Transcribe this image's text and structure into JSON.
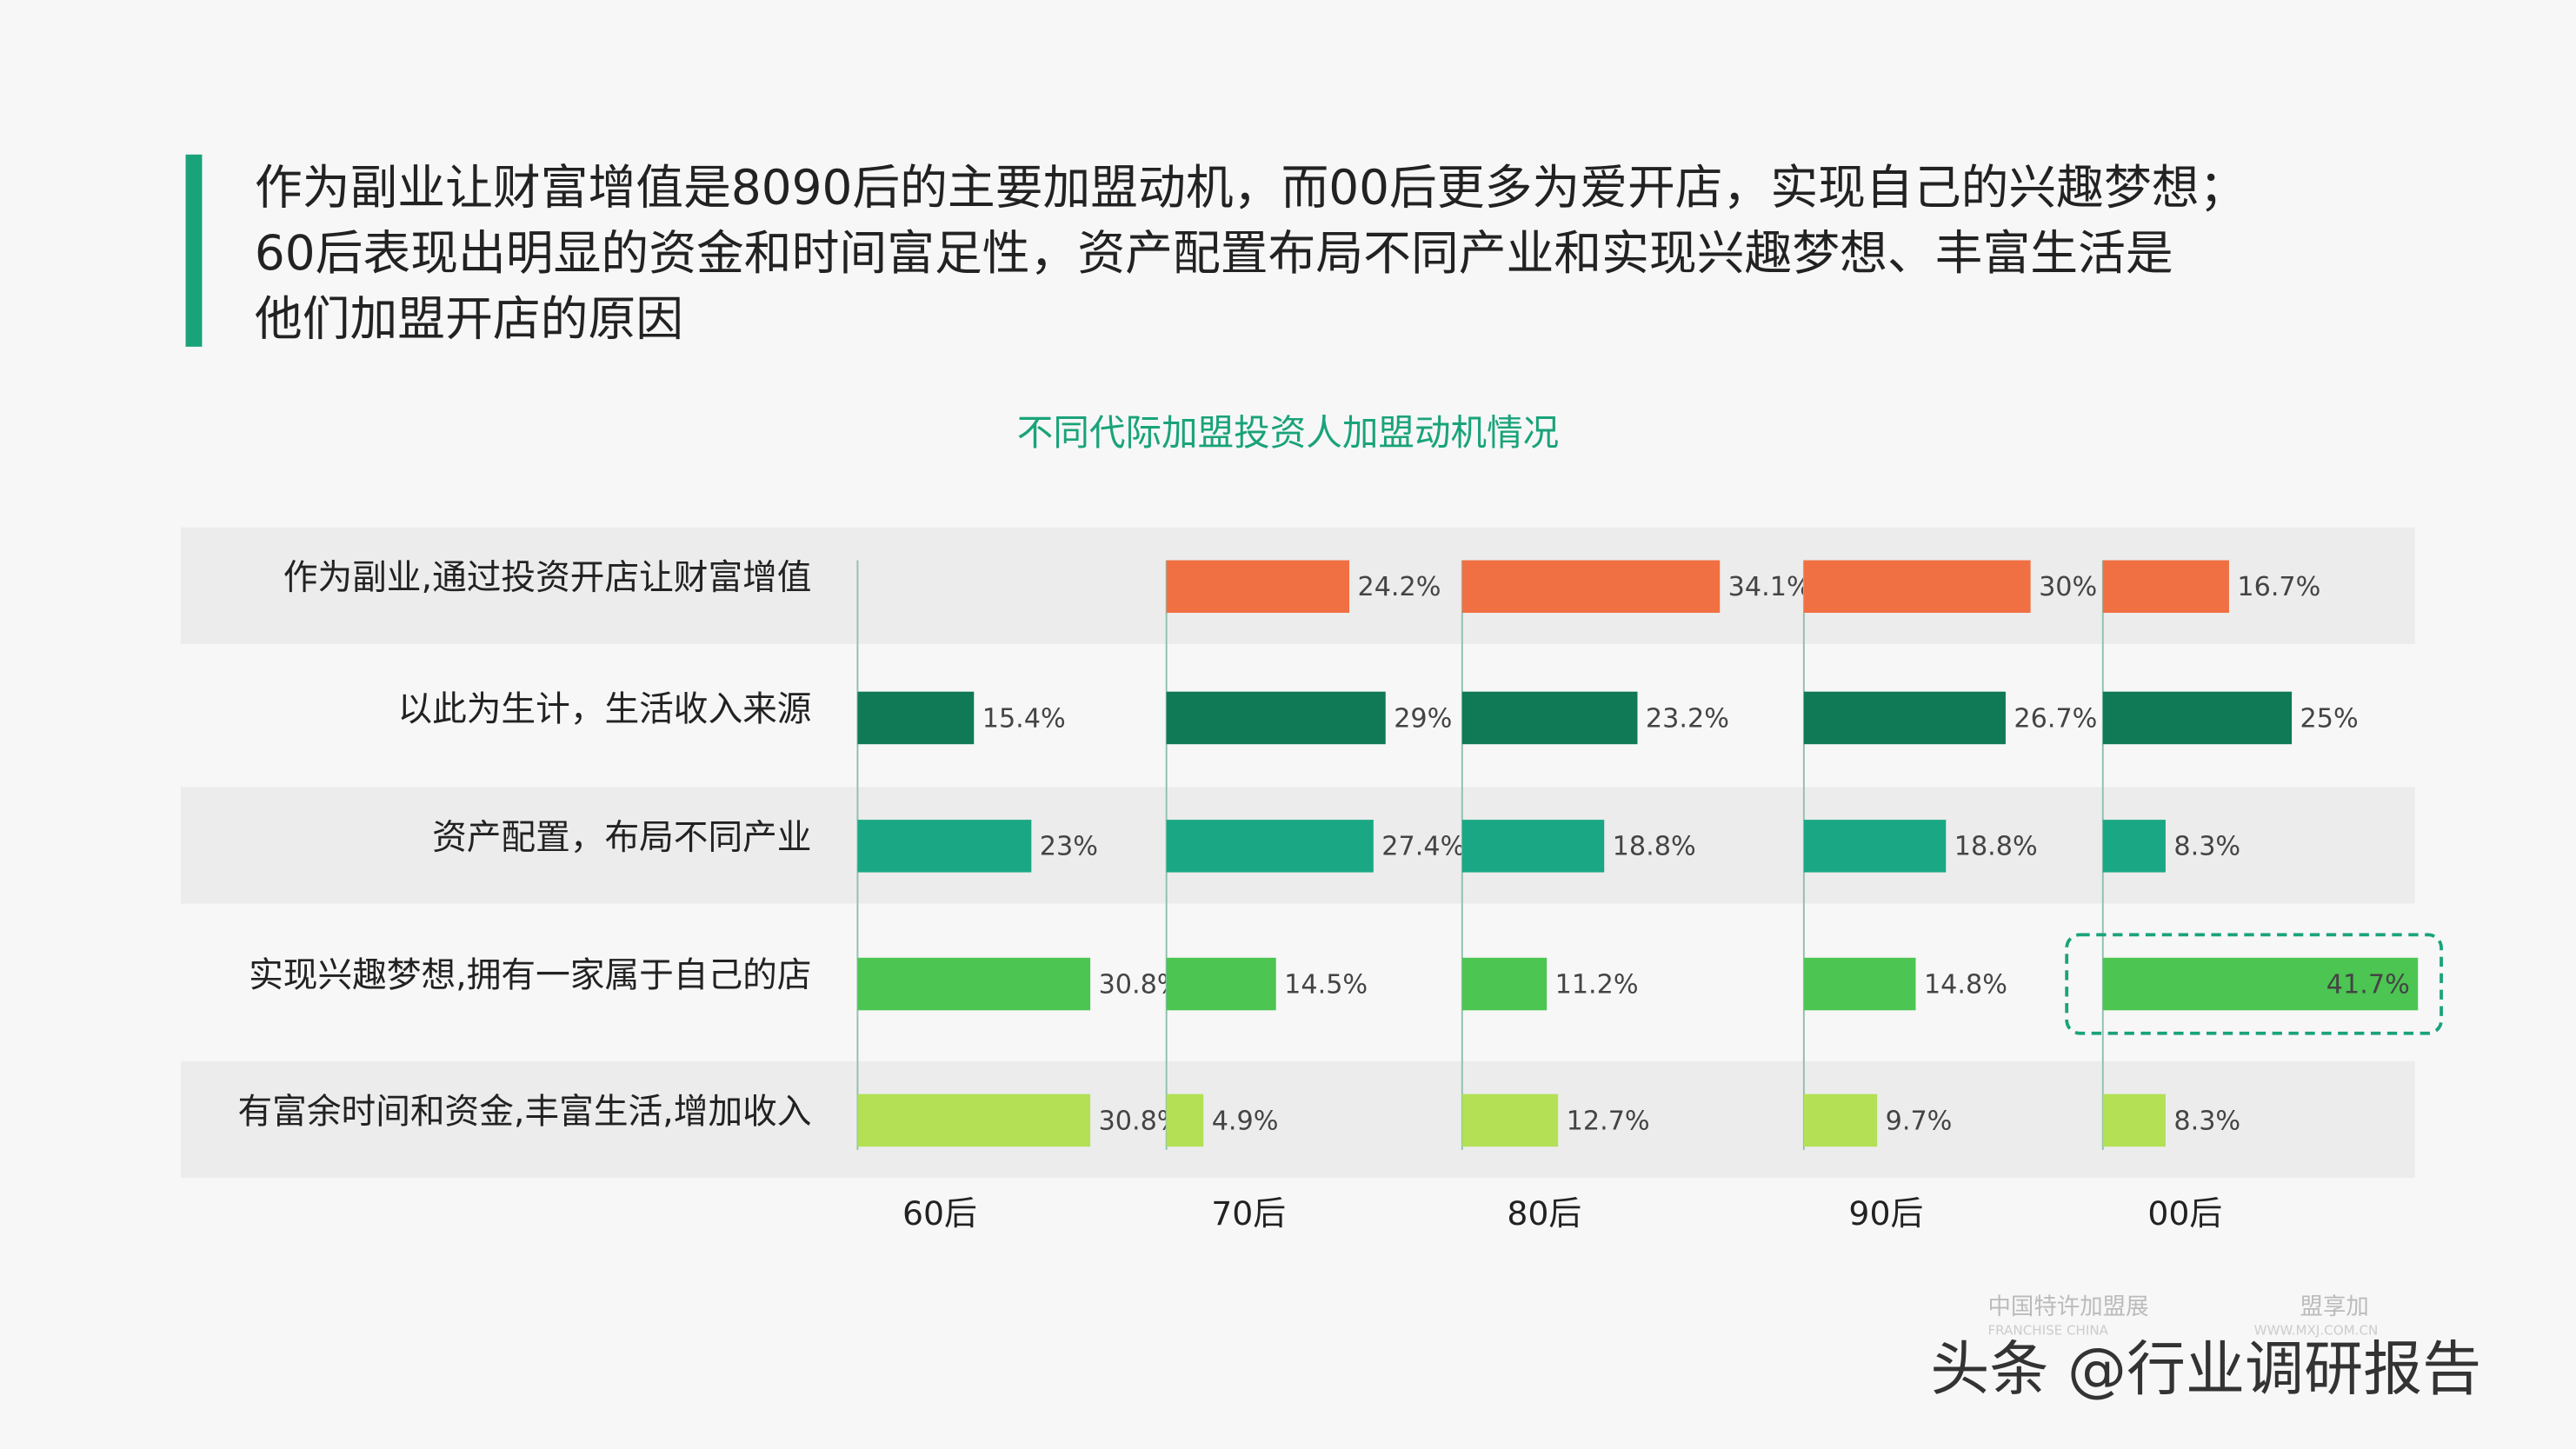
{
  "headline": [
    "作为副业让财富增值是8090后的主要加盟动机，而00后更多为爱开店，实现自己的兴趣梦想；",
    "60后表现出明显的资金和时间富足性，资产配置布局不同产业和实现兴趣梦想、丰富生活是",
    "他们加盟开店的原因"
  ],
  "chart_data": {
    "type": "bar",
    "title": "不同代际加盟投资人加盟动机情况",
    "categories": [
      "作为副业,通过投资开店让财富增值",
      "以此为生计，生活收入来源",
      "资产配置，布局不同产业",
      "实现兴趣梦想,拥有一家属于自己的店",
      "有富余时间和资金,丰富生活,增加收入"
    ],
    "colors": [
      "#f07043",
      "#0f7a55",
      "#1aa884",
      "#4cc552",
      "#b3e055"
    ],
    "series": [
      {
        "name": "60后",
        "values": [
          null,
          15.4,
          23,
          30.8,
          30.8
        ],
        "value_labels": [
          null,
          "15.4%",
          "23%",
          "30.8%",
          "30.8%"
        ]
      },
      {
        "name": "70后",
        "values": [
          24.2,
          29,
          27.4,
          14.5,
          4.9
        ],
        "value_labels": [
          "24.2%",
          "29%",
          "27.4%",
          "14.5%",
          "4.9%"
        ]
      },
      {
        "name": "80后",
        "values": [
          34.1,
          23.2,
          18.8,
          11.2,
          12.7
        ],
        "value_labels": [
          "34.1%",
          "23.2%",
          "18.8%",
          "11.2%",
          "12.7%"
        ]
      },
      {
        "name": "90后",
        "values": [
          30,
          26.7,
          18.8,
          14.8,
          9.7
        ],
        "value_labels": [
          "30%",
          "26.7%",
          "18.8%",
          "14.8%",
          "9.7%"
        ]
      },
      {
        "name": "00后",
        "values": [
          16.7,
          25,
          8.3,
          41.7,
          8.3
        ],
        "value_labels": [
          "16.7%",
          "25%",
          "8.3%",
          "41.7%",
          "8.3%"
        ]
      }
    ]
  },
  "watermarks": [
    "中国特许加盟展",
    "FRANCHISE CHINA",
    "盟享加",
    "WWW.MXJ.COM.CN",
    "头条 @行业调研报告"
  ]
}
